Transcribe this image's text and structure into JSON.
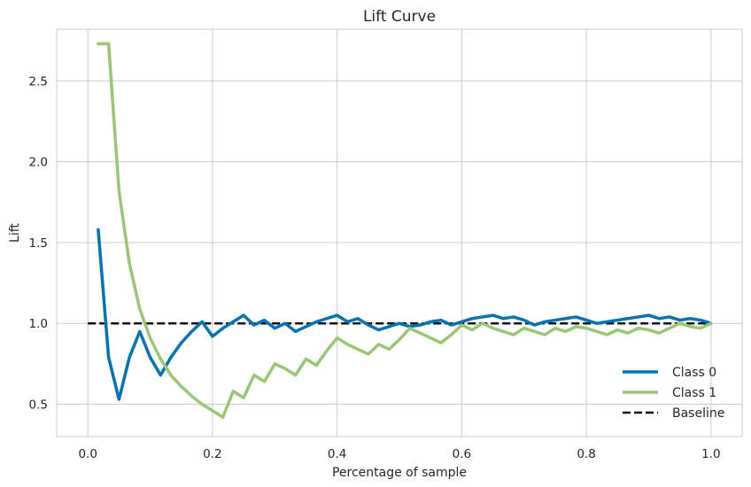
{
  "chart_data": {
    "type": "line",
    "title": "Lift Curve",
    "xlabel": "Percentage of sample",
    "ylabel": "Lift",
    "xlim": [
      -0.05,
      1.05
    ],
    "ylim": [
      0.3,
      2.82
    ],
    "xticks": [
      0.0,
      0.2,
      0.4,
      0.6,
      0.8,
      1.0
    ],
    "xtick_labels": [
      "0.0",
      "0.2",
      "0.4",
      "0.6",
      "0.8",
      "1.0"
    ],
    "yticks": [
      0.5,
      1.0,
      1.5,
      2.0,
      2.5
    ],
    "ytick_labels": [
      "0.5",
      "1.0",
      "1.5",
      "2.0",
      "2.5"
    ],
    "grid": true,
    "legend_position": "bottom-right",
    "series": [
      {
        "name": "Class 0",
        "color": "#0173b2",
        "style": "solid",
        "x": [
          0.0167,
          0.0333,
          0.05,
          0.0667,
          0.0833,
          0.1,
          0.1167,
          0.1333,
          0.15,
          0.1667,
          0.1833,
          0.2,
          0.2167,
          0.2333,
          0.25,
          0.2667,
          0.2833,
          0.3,
          0.3167,
          0.3333,
          0.35,
          0.3667,
          0.3833,
          0.4,
          0.4167,
          0.4333,
          0.45,
          0.4667,
          0.4833,
          0.5,
          0.5167,
          0.5333,
          0.55,
          0.5667,
          0.5833,
          0.6,
          0.6167,
          0.6333,
          0.65,
          0.6667,
          0.6833,
          0.7,
          0.7167,
          0.7333,
          0.75,
          0.7667,
          0.7833,
          0.8,
          0.8167,
          0.8333,
          0.85,
          0.8667,
          0.8833,
          0.9,
          0.9167,
          0.9333,
          0.95,
          0.9667,
          0.9833,
          1.0
        ],
        "y": [
          1.58,
          0.79,
          0.53,
          0.79,
          0.95,
          0.79,
          0.68,
          0.79,
          0.88,
          0.95,
          1.01,
          0.92,
          0.97,
          1.01,
          1.05,
          0.99,
          1.02,
          0.97,
          1.0,
          0.95,
          0.98,
          1.01,
          1.03,
          1.05,
          1.01,
          1.03,
          0.99,
          0.96,
          0.98,
          1.0,
          0.98,
          0.99,
          1.01,
          1.02,
          0.99,
          1.01,
          1.03,
          1.04,
          1.05,
          1.03,
          1.04,
          1.02,
          0.99,
          1.01,
          1.02,
          1.03,
          1.04,
          1.02,
          1.0,
          1.01,
          1.02,
          1.03,
          1.04,
          1.05,
          1.03,
          1.04,
          1.02,
          1.03,
          1.02,
          1.0
        ]
      },
      {
        "name": "Class 1",
        "color": "#9bc676",
        "style": "solid",
        "x": [
          0.0167,
          0.0333,
          0.05,
          0.0667,
          0.0833,
          0.1,
          0.1167,
          0.1333,
          0.15,
          0.1667,
          0.1833,
          0.2,
          0.2167,
          0.2333,
          0.25,
          0.2667,
          0.2833,
          0.3,
          0.3167,
          0.3333,
          0.35,
          0.3667,
          0.3833,
          0.4,
          0.4167,
          0.4333,
          0.45,
          0.4667,
          0.4833,
          0.5,
          0.5167,
          0.5333,
          0.55,
          0.5667,
          0.5833,
          0.6,
          0.6167,
          0.6333,
          0.65,
          0.6667,
          0.6833,
          0.7,
          0.7167,
          0.7333,
          0.75,
          0.7667,
          0.7833,
          0.8,
          0.8167,
          0.8333,
          0.85,
          0.8667,
          0.8833,
          0.9,
          0.9167,
          0.9333,
          0.95,
          0.9667,
          0.9833,
          1.0
        ],
        "y": [
          2.73,
          2.73,
          1.82,
          1.37,
          1.09,
          0.91,
          0.78,
          0.68,
          0.61,
          0.55,
          0.5,
          0.46,
          0.42,
          0.58,
          0.54,
          0.68,
          0.64,
          0.75,
          0.72,
          0.68,
          0.78,
          0.74,
          0.83,
          0.91,
          0.87,
          0.84,
          0.81,
          0.87,
          0.84,
          0.9,
          0.97,
          0.94,
          0.91,
          0.88,
          0.93,
          0.99,
          0.96,
          1.0,
          0.97,
          0.95,
          0.93,
          0.97,
          0.95,
          0.93,
          0.97,
          0.95,
          0.98,
          0.97,
          0.95,
          0.93,
          0.96,
          0.94,
          0.97,
          0.96,
          0.94,
          0.97,
          1.0,
          0.98,
          0.97,
          1.0
        ]
      },
      {
        "name": "Baseline",
        "color": "#111111",
        "style": "dashed",
        "x": [
          0.0,
          1.0
        ],
        "y": [
          1.0,
          1.0
        ]
      }
    ]
  }
}
